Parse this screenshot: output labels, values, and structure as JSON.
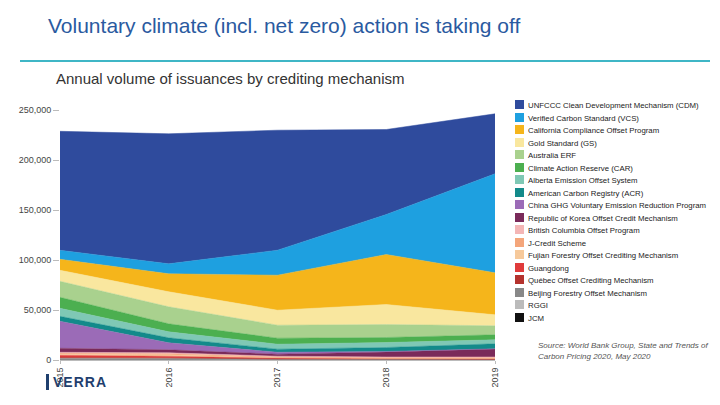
{
  "chart_data": {
    "type": "area",
    "title": "Voluntary climate (incl. net zero) action is taking off",
    "subtitle": "Annual volume of issuances by crediting mechanism",
    "annotations": [
      "Source: World Bank Group, State and Trends of Carbon Pricing 2020, May 2020",
      "VERRA"
    ],
    "categories": [
      "2015",
      "2016",
      "2017",
      "2018",
      "2019"
    ],
    "stacked": true,
    "grid": false,
    "ylim": [
      0,
      250000
    ],
    "yticks": [
      0,
      {
        "value": 50000,
        "label": "50,000"
      },
      {
        "value": 100000,
        "label": "100,000"
      },
      {
        "value": 150000,
        "label": "150,000"
      },
      {
        "value": 200000,
        "label": "200,000"
      },
      {
        "value": 250000,
        "label": "250,000"
      }
    ],
    "series": [
      {
        "name": "UNFCCC Clean Development Mechanism (CDM)",
        "color": "#2f4b9d",
        "values": [
          119000,
          130000,
          120000,
          85000,
          60000
        ]
      },
      {
        "name": "Verified Carbon Standard (VCS)",
        "color": "#1ea0e0",
        "values": [
          9000,
          10000,
          25000,
          40000,
          99000
        ]
      },
      {
        "name": "California Compliance Offset Program",
        "color": "#f5b51b",
        "values": [
          11000,
          18000,
          35000,
          50000,
          42000
        ]
      },
      {
        "name": "Gold Standard (GS)",
        "color": "#f9e79f",
        "values": [
          11000,
          15000,
          15000,
          20000,
          11000
        ]
      },
      {
        "name": "Australia ERF",
        "color": "#a9d18e",
        "values": [
          16000,
          17000,
          13000,
          13000,
          9000
        ]
      },
      {
        "name": "Climate Action Reserve (CAR)",
        "color": "#4caf50",
        "values": [
          11000,
          8000,
          6000,
          5000,
          5000
        ]
      },
      {
        "name": "Alberta Emission Offset System",
        "color": "#7fc8b5",
        "values": [
          8000,
          6000,
          5000,
          5000,
          4000
        ]
      },
      {
        "name": "American Carbon Registry (ACR)",
        "color": "#138a8a",
        "values": [
          5000,
          5000,
          3000,
          4000,
          5000
        ]
      },
      {
        "name": "China GHG Voluntary Emission Reduction Program",
        "color": "#9b6bb7",
        "values": [
          27000,
          7000,
          2000,
          500,
          200
        ]
      },
      {
        "name": "Republic of Korea Offset Credit Mechanism",
        "color": "#7a2a5a",
        "values": [
          4000,
          3000,
          2000,
          5000,
          8000
        ]
      },
      {
        "name": "British Columbia Offset Program",
        "color": "#f4b6b6",
        "values": [
          1000,
          1000,
          800,
          800,
          800
        ]
      },
      {
        "name": "J-Credit Scheme",
        "color": "#f4a67b",
        "values": [
          1000,
          1000,
          600,
          600,
          600
        ]
      },
      {
        "name": "Fujian Forestry Offset Crediting Mechanism",
        "color": "#f6c99b",
        "values": [
          1000,
          1500,
          500,
          300,
          300
        ]
      },
      {
        "name": "Guangdong",
        "color": "#e03b3b",
        "values": [
          2000,
          1500,
          800,
          500,
          500
        ]
      },
      {
        "name": "Québec Offset Crediting Mechanism",
        "color": "#b4322d",
        "values": [
          1000,
          500,
          500,
          400,
          400
        ]
      },
      {
        "name": "Beijing Forestry Offset Mechanism",
        "color": "#888888",
        "values": [
          500,
          500,
          200,
          100,
          100
        ]
      },
      {
        "name": "RGGI",
        "color": "#bbbbbb",
        "values": [
          1000,
          1000,
          300,
          200,
          200
        ]
      },
      {
        "name": "JCM",
        "color": "#111111",
        "values": [
          200,
          200,
          100,
          100,
          100
        ]
      }
    ]
  }
}
